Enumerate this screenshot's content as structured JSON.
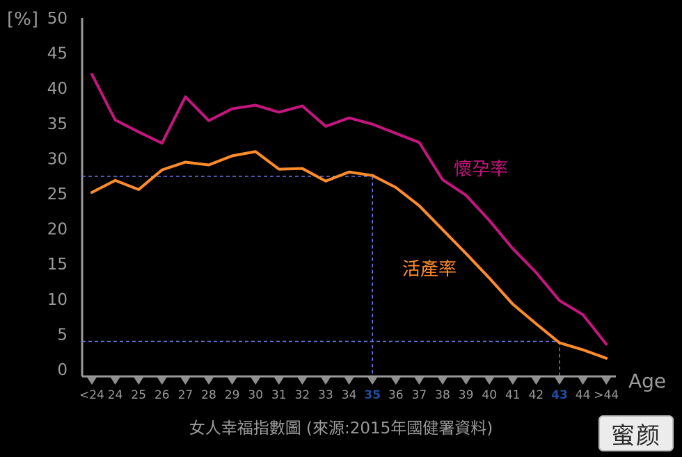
{
  "chart_data": {
    "type": "line",
    "y_unit": "[%]",
    "xlabel": "Age",
    "caption": "女人幸福指數圖  (來源:2015年國健署資料)",
    "ylim": [
      0,
      50
    ],
    "yticks": [
      "50",
      "45",
      "40",
      "35",
      "30",
      "25",
      "20",
      "15",
      "10",
      "5",
      "0"
    ],
    "categories": [
      "<24",
      "24",
      "25",
      "26",
      "27",
      "28",
      "29",
      "30",
      "31",
      "32",
      "33",
      "34",
      "35",
      "36",
      "37",
      "38",
      "39",
      "40",
      "41",
      "42",
      "43",
      "44",
      ">44"
    ],
    "highlight_categories": [
      "35",
      "43"
    ],
    "series": [
      {
        "name": "懷孕率",
        "color": "#c5157f",
        "values": [
          42,
          35.5,
          33.8,
          32.2,
          38.8,
          35.4,
          37.1,
          37.6,
          36.6,
          37.5,
          34.6,
          35.8,
          34.9,
          33.6,
          32.3,
          27,
          24.8,
          21.2,
          17.2,
          13.8,
          9.8,
          7.8,
          3.6
        ]
      },
      {
        "name": "活產率",
        "color": "#ff8c2a",
        "values": [
          25.2,
          26.9,
          25.6,
          28.4,
          29.5,
          29.1,
          30.4,
          31,
          28.5,
          28.6,
          26.8,
          28.1,
          27.6,
          25.9,
          23.3,
          19.9,
          16.5,
          13,
          9.3,
          6.5,
          3.8,
          2.8,
          1.6
        ]
      }
    ],
    "reference_lines": [
      {
        "x": "35",
        "y": 27.5,
        "color": "#6f7ff0"
      },
      {
        "x": "43",
        "y": 4,
        "color": "#6f7ff0"
      }
    ],
    "grid": false
  },
  "watermark": "蜜颜"
}
